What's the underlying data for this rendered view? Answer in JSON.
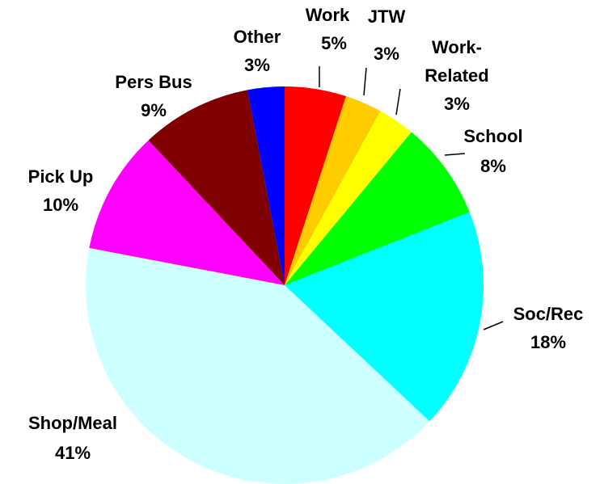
{
  "chart_data": {
    "type": "pie",
    "categories": [
      "Work",
      "JTW",
      "Work-Related",
      "School",
      "Soc/Rec",
      "Shop/Meal",
      "Pick Up",
      "Pers Bus",
      "Other"
    ],
    "values": [
      5,
      3,
      3,
      8,
      18,
      41,
      10,
      9,
      3
    ],
    "value_labels": [
      "5%",
      "3%",
      "3%",
      "8%",
      "18%",
      "41%",
      "10%",
      "9%",
      "3%"
    ],
    "colors": [
      "#ff0000",
      "#ffcc00",
      "#ffff00",
      "#00ff00",
      "#00ffff",
      "#ccffff",
      "#ff00ff",
      "#800000",
      "#0000ff"
    ]
  }
}
